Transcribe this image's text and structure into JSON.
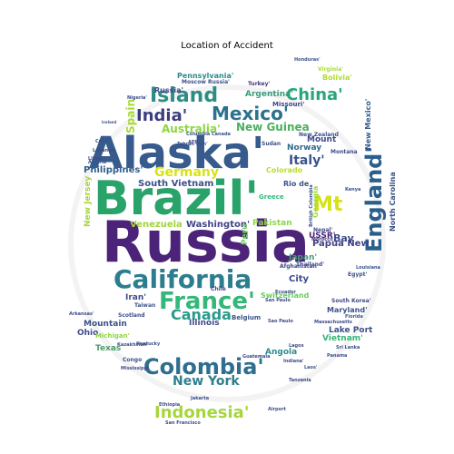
{
  "title": "Location of Accident",
  "words": [
    {
      "text": "Russia",
      "color": "#4b2378"
    },
    {
      "text": "Brazil'",
      "color": "#29a36a"
    },
    {
      "text": "Alaska'",
      "color": "#365b8c"
    },
    {
      "text": "California",
      "color": "#2c7d8e"
    },
    {
      "text": "France'",
      "color": "#35b779"
    },
    {
      "text": "England'",
      "color": "#2a5f8b"
    },
    {
      "text": "Colombia'",
      "color": "#2e6e8e"
    },
    {
      "text": "Indonesia'",
      "color": "#a5d63d"
    },
    {
      "text": "Island",
      "color": "#2d8d85"
    },
    {
      "text": "Mexico'",
      "color": "#2c718e"
    },
    {
      "text": "China'",
      "color": "#2aa47f"
    },
    {
      "text": "India'",
      "color": "#3b3c7f"
    },
    {
      "text": "Canada",
      "color": "#29998a"
    },
    {
      "text": "Germany",
      "color": "#d8e219"
    },
    {
      "text": "Australia'",
      "color": "#8ed542"
    },
    {
      "text": "Italy'",
      "color": "#3a548c"
    },
    {
      "text": "New York",
      "color": "#2f7f8e"
    },
    {
      "text": "Mt",
      "color": "#d5e21a"
    },
    {
      "text": "Bay",
      "color": "#3b4f8c"
    },
    {
      "text": "Russia'",
      "color": "#3f4a89"
    },
    {
      "text": "Spain",
      "color": "#a8db34"
    },
    {
      "text": "South Vietnam",
      "color": "#3c4f8a"
    },
    {
      "text": "Pennsylvania'",
      "color": "#2c8a8d"
    },
    {
      "text": "Argentina'",
      "color": "#3a9a7b"
    },
    {
      "text": "New Guinea",
      "color": "#4caf5e"
    },
    {
      "text": "Philippines'",
      "color": "#33608d"
    },
    {
      "text": "Venezuela",
      "color": "#a2d23a"
    },
    {
      "text": "Washington'",
      "color": "#414487"
    },
    {
      "text": "Pakistan",
      "color": "#8bd646"
    },
    {
      "text": "Papua New",
      "color": "#424086"
    },
    {
      "text": "USSR'",
      "color": "#482475"
    },
    {
      "text": "Iran'",
      "color": "#3e4a89"
    },
    {
      "text": "Illinois",
      "color": "#3d4d8a"
    },
    {
      "text": "Mountain",
      "color": "#3b528b"
    },
    {
      "text": "Ohio",
      "color": "#3e4c8a"
    },
    {
      "text": "Texas",
      "color": "#4e9a6c"
    },
    {
      "text": "Angola",
      "color": "#2e8c8c"
    },
    {
      "text": "Lake Port",
      "color": "#3d508a"
    },
    {
      "text": "North Carolina",
      "color": "#3b5288"
    },
    {
      "text": "New Mexico'",
      "color": "#365d8d"
    },
    {
      "text": "Japan'",
      "color": "#4a9c78"
    },
    {
      "text": "City",
      "color": "#3f4889"
    },
    {
      "text": "Vietnam'",
      "color": "#35b779"
    },
    {
      "text": "Maryland'",
      "color": "#3b528b"
    },
    {
      "text": "Norway",
      "color": "#306a8e"
    },
    {
      "text": "Colorado",
      "color": "#b8de29"
    },
    {
      "text": "Georgia",
      "color": "#a0da39"
    },
    {
      "text": "Mount",
      "color": "#3e4989"
    },
    {
      "text": "Bolivia'",
      "color": "#b0dc2f"
    },
    {
      "text": "Missouri'",
      "color": "#414487"
    },
    {
      "text": "Virginia'",
      "color": "#a8db34"
    },
    {
      "text": "Turkey'",
      "color": "#46337f"
    },
    {
      "text": "Moscow Russia'",
      "color": "#3c4f8a"
    },
    {
      "text": "Peru",
      "color": "#6ccd5a"
    },
    {
      "text": "Afghanistan",
      "color": "#3f4889"
    },
    {
      "text": "Chile",
      "color": "#3b528b"
    },
    {
      "text": "Switzerland",
      "color": "#67cc5c"
    },
    {
      "text": "Belgium",
      "color": "#3a548c"
    },
    {
      "text": "South Korea'",
      "color": "#3e4a89"
    },
    {
      "text": "Rio de",
      "color": "#3b528b"
    },
    {
      "text": "Greece",
      "color": "#35b779"
    },
    {
      "text": "Nepal'",
      "color": "#3e4c8a"
    },
    {
      "text": "Morocco",
      "color": "#46337f"
    },
    {
      "text": "Sudan",
      "color": "#3d4e8a"
    },
    {
      "text": "Thailand'",
      "color": "#3b528b"
    },
    {
      "text": "Scotland",
      "color": "#3e4c8a"
    },
    {
      "text": "Taiwan",
      "color": "#3a548c"
    },
    {
      "text": "Egypt'",
      "color": "#3b5288"
    },
    {
      "text": "Ecuador",
      "color": "#3e4a89"
    },
    {
      "text": "San Paulo",
      "color": "#3d4e8a"
    },
    {
      "text": "Michigan'",
      "color": "#8ed542"
    },
    {
      "text": "Congo",
      "color": "#3b528b"
    },
    {
      "text": "Lagos",
      "color": "#3e4989"
    },
    {
      "text": "Indiana'",
      "color": "#3d4d8a"
    },
    {
      "text": "Laos'",
      "color": "#3a548c"
    },
    {
      "text": "British Columbia",
      "color": "#3b528b"
    },
    {
      "text": "New Jersey",
      "color": "#a5d63d"
    },
    {
      "text": "New Zealand",
      "color": "#3a548c"
    },
    {
      "text": "Montana",
      "color": "#3e4c8a"
    },
    {
      "text": "Columbia Canada",
      "color": "#3b528b"
    },
    {
      "text": "AFB",
      "color": "#3e4a89"
    },
    {
      "text": "Massachusetts",
      "color": "#3e4a89"
    },
    {
      "text": "Sri Lanka",
      "color": "#3b528b"
    },
    {
      "text": "Kenya",
      "color": "#3d4e8a"
    },
    {
      "text": "Lebanon",
      "color": "#3e4989"
    },
    {
      "text": "Arkansas'",
      "color": "#3e4a89"
    },
    {
      "text": "Kazakhstan'",
      "color": "#3a548c"
    },
    {
      "text": "Honduras'",
      "color": "#3b528b"
    },
    {
      "text": "Nigeria'",
      "color": "#3e4c8a"
    },
    {
      "text": "Cuba'",
      "color": "#3b528b"
    },
    {
      "text": "Algeria'",
      "color": "#3a548c"
    },
    {
      "text": "Libya'",
      "color": "#3e4a89"
    },
    {
      "text": "Iceland",
      "color": "#3b528b"
    },
    {
      "text": "Tehran Iran'",
      "color": "#3b528b"
    },
    {
      "text": "Sao Paulo",
      "color": "#3e4c8a"
    },
    {
      "text": "Jakarta",
      "color": "#3a548c"
    },
    {
      "text": "Panama",
      "color": "#3b528b"
    },
    {
      "text": "Tanzania",
      "color": "#3e4a89"
    },
    {
      "text": "Florida",
      "color": "#3a548c"
    },
    {
      "text": "Guatemala",
      "color": "#3e4a89"
    },
    {
      "text": "Airport",
      "color": "#3b528b"
    },
    {
      "text": "Ethiopia",
      "color": "#3d4e8a"
    },
    {
      "text": "San Francisco",
      "color": "#3e4c8a"
    },
    {
      "text": "Kentucky",
      "color": "#3b528b"
    },
    {
      "text": "Mississippi",
      "color": "#3e4a89"
    },
    {
      "text": "Louisiana",
      "color": "#3b528b"
    }
  ]
}
